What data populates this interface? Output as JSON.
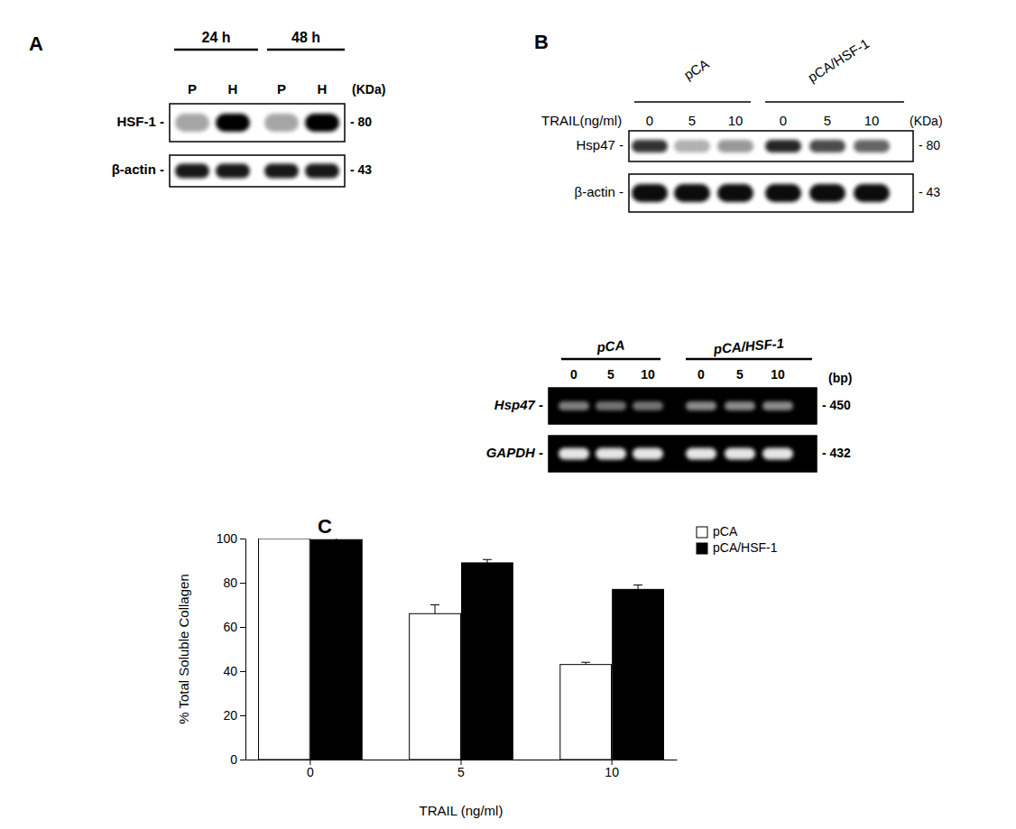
{
  "panel_a": {
    "label": "A",
    "groups": [
      {
        "label": "24 h",
        "lanes": [
          "P",
          "H"
        ]
      },
      {
        "label": "48 h",
        "lanes": [
          "P",
          "H"
        ]
      }
    ],
    "unit": "(KDa)",
    "rows": [
      {
        "name": "HSF-1 -",
        "size": "- 80",
        "intensity": [
          0.35,
          1,
          0.35,
          1
        ]
      },
      {
        "name": "β-actin -",
        "size": "- 43",
        "intensity": [
          0.9,
          0.9,
          0.9,
          0.9
        ]
      }
    ]
  },
  "panel_b": {
    "label": "B",
    "western": {
      "groups": [
        "pCA",
        "pCA/HSF-1"
      ],
      "treatment": "TRAIL(ng/ml)",
      "doses": [
        "0",
        "5",
        "10"
      ],
      "unit": "(KDa)",
      "rows": [
        {
          "name": "Hsp47 -",
          "size": "- 80",
          "intensity": [
            0.8,
            0.3,
            0.4,
            0.85,
            0.7,
            0.6
          ]
        },
        {
          "name": "β-actin -",
          "size": "- 43",
          "intensity": [
            0.95,
            0.95,
            0.95,
            0.95,
            0.95,
            0.95
          ]
        }
      ]
    },
    "rt_pcr": {
      "groups": [
        "pCA",
        "pCA/HSF-1"
      ],
      "doses": [
        "0",
        "5",
        "10"
      ],
      "unit": "(bp)",
      "rows": [
        {
          "name": "Hsp47 -",
          "size": "- 450",
          "intensity": [
            0.5,
            0.45,
            0.45,
            0.55,
            0.55,
            0.55
          ]
        },
        {
          "name": "GAPDH -",
          "size": "- 432",
          "intensity": [
            0.9,
            0.9,
            0.9,
            0.9,
            0.9,
            0.9
          ]
        }
      ]
    }
  },
  "chart_data": {
    "type": "bar",
    "title": "C",
    "categories": [
      "0",
      "5",
      "10"
    ],
    "series": [
      {
        "name": "pCA",
        "color": "#ffffff",
        "values": [
          100,
          66,
          43
        ],
        "errors": [
          0.5,
          4,
          1
        ]
      },
      {
        "name": "pCA/HSF-1",
        "color": "#000000",
        "values": [
          99.5,
          89,
          77
        ],
        "errors": [
          1,
          1.5,
          2
        ]
      }
    ],
    "ylim": [
      0,
      100
    ],
    "yticks": [
      0,
      20,
      40,
      60,
      80,
      100
    ],
    "xlabel": "TRAIL (ng/ml)",
    "ylabel": "% Total Soluble Collagen",
    "legend": "upper right"
  }
}
